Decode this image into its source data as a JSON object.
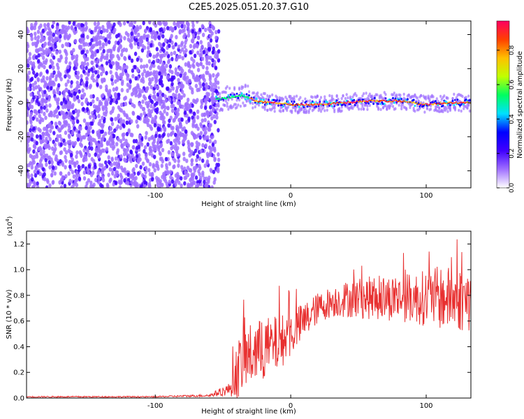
{
  "title": "C2E5.2025.051.20.37.G10",
  "chart_data": [
    {
      "type": "heatmap",
      "name": "spectrogram",
      "xlabel": "Height of straight line (km)",
      "ylabel": "Frequency (Hz)",
      "xlim": [
        -195,
        133
      ],
      "ylim": [
        -50,
        48
      ],
      "xticks": [
        -100,
        0,
        100
      ],
      "yticks": [
        40,
        20,
        0,
        -20,
        -40
      ],
      "colorbar": {
        "label": "Normalized spectral amplitude",
        "ticks": [
          0.0,
          0.2,
          0.4,
          0.6,
          0.8
        ],
        "tick_labels": [
          "0.0",
          "0.2",
          "0.4",
          "0.6",
          "0.8"
        ],
        "range": [
          0,
          0.97
        ],
        "colormap": [
          "#ffffff",
          "#a070ff",
          "#4000ff",
          "#0000ff",
          "#00e0ff",
          "#00ff60",
          "#c0ff00",
          "#ffc000",
          "#ff4000",
          "#ff0060"
        ]
      },
      "noise_region_x": [
        -195,
        -55
      ],
      "signal_ridge": {
        "x": [
          -55,
          -45,
          -35,
          -25,
          -15,
          0,
          20,
          40,
          60,
          80,
          100,
          120,
          133
        ],
        "freq": [
          2,
          3,
          4,
          1,
          0,
          -1,
          -1,
          0,
          1,
          1,
          -1,
          0,
          0
        ]
      }
    },
    {
      "type": "line",
      "name": "snr",
      "xlabel": "Height of straight line (km)",
      "ylabel": "SNR (10 * v/v)",
      "multiplier": "(x10",
      "multiplier_exp": "4",
      "xlim": [
        -195,
        133
      ],
      "ylim": [
        0,
        1.3
      ],
      "xticks": [
        -100,
        0,
        100
      ],
      "yticks": [
        0.0,
        0.2,
        0.4,
        0.6,
        0.8,
        1.0,
        1.2
      ],
      "ytick_labels": [
        "0.0",
        "0.2",
        "0.4",
        "0.6",
        "0.8",
        "1.0",
        "1.2"
      ],
      "color": "#e83030",
      "series": [
        {
          "x": [
            -195,
            -150,
            -100,
            -60,
            -45,
            -40,
            -35,
            -30,
            -20,
            -10,
            0,
            10,
            20,
            30,
            40,
            50,
            60,
            70,
            80,
            90,
            100,
            110,
            120,
            133
          ],
          "values": [
            0.01,
            0.01,
            0.01,
            0.02,
            0.07,
            0.2,
            0.3,
            0.33,
            0.38,
            0.42,
            0.5,
            0.6,
            0.7,
            0.75,
            0.77,
            0.78,
            0.78,
            0.78,
            0.78,
            0.78,
            0.78,
            0.78,
            0.77,
            0.76
          ],
          "spread": [
            0.005,
            0.005,
            0.005,
            0.01,
            0.05,
            0.22,
            0.25,
            0.25,
            0.25,
            0.22,
            0.18,
            0.15,
            0.12,
            0.12,
            0.14,
            0.16,
            0.17,
            0.18,
            0.18,
            0.2,
            0.22,
            0.25,
            0.25,
            0.25
          ]
        }
      ]
    }
  ]
}
